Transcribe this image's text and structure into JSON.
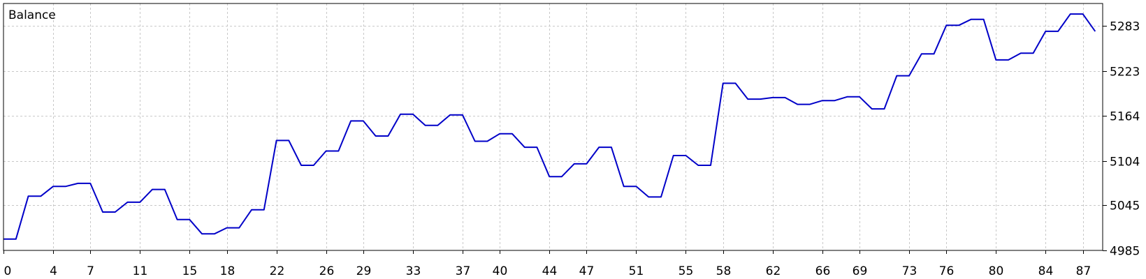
{
  "chart_data": {
    "type": "line",
    "title": "Balance",
    "xlabel": "",
    "ylabel": "",
    "xlim": [
      0,
      88.6
    ],
    "ylim": [
      4985,
      5313
    ],
    "x_ticks": [
      0,
      4,
      7,
      11,
      15,
      18,
      22,
      26,
      29,
      33,
      37,
      40,
      44,
      47,
      51,
      55,
      58,
      62,
      66,
      69,
      73,
      76,
      80,
      84,
      87
    ],
    "y_ticks": [
      4985,
      5045,
      5104,
      5164,
      5223,
      5283
    ],
    "grid": true,
    "legend": "none",
    "series": [
      {
        "color": "#0000c8",
        "points": [
          [
            0,
            5000
          ],
          [
            1,
            5000
          ],
          [
            2,
            5057
          ],
          [
            3,
            5057
          ],
          [
            4,
            5070
          ],
          [
            5,
            5070
          ],
          [
            6,
            5074
          ],
          [
            7,
            5074
          ],
          [
            8,
            5036
          ],
          [
            9,
            5036
          ],
          [
            10,
            5049
          ],
          [
            11,
            5049
          ],
          [
            12,
            5066
          ],
          [
            13,
            5066
          ],
          [
            14,
            5026
          ],
          [
            15,
            5026
          ],
          [
            16,
            5007
          ],
          [
            17,
            5007
          ],
          [
            18,
            5015
          ],
          [
            19,
            5015
          ],
          [
            20,
            5039
          ],
          [
            21,
            5039
          ],
          [
            22,
            5131
          ],
          [
            23,
            5131
          ],
          [
            24,
            5098
          ],
          [
            25,
            5098
          ],
          [
            26,
            5117
          ],
          [
            27,
            5117
          ],
          [
            28,
            5157
          ],
          [
            29,
            5157
          ],
          [
            30,
            5137
          ],
          [
            31,
            5137
          ],
          [
            32,
            5166
          ],
          [
            33,
            5166
          ],
          [
            34,
            5151
          ],
          [
            35,
            5151
          ],
          [
            36,
            5165
          ],
          [
            37,
            5165
          ],
          [
            38,
            5130
          ],
          [
            39,
            5130
          ],
          [
            40,
            5140
          ],
          [
            41,
            5140
          ],
          [
            42,
            5122
          ],
          [
            43,
            5122
          ],
          [
            44,
            5083
          ],
          [
            45,
            5083
          ],
          [
            46,
            5100
          ],
          [
            47,
            5100
          ],
          [
            48,
            5122
          ],
          [
            49,
            5122
          ],
          [
            50,
            5070
          ],
          [
            51,
            5070
          ],
          [
            52,
            5056
          ],
          [
            53,
            5056
          ],
          [
            54,
            5111
          ],
          [
            55,
            5111
          ],
          [
            56,
            5098
          ],
          [
            57,
            5098
          ],
          [
            58,
            5207
          ],
          [
            59,
            5207
          ],
          [
            60,
            5186
          ],
          [
            61,
            5186
          ],
          [
            62,
            5188
          ],
          [
            63,
            5188
          ],
          [
            64,
            5179
          ],
          [
            65,
            5179
          ],
          [
            66,
            5184
          ],
          [
            67,
            5184
          ],
          [
            68,
            5189
          ],
          [
            69,
            5189
          ],
          [
            70,
            5173
          ],
          [
            71,
            5173
          ],
          [
            72,
            5217
          ],
          [
            73,
            5217
          ],
          [
            74,
            5246
          ],
          [
            75,
            5246
          ],
          [
            76,
            5284
          ],
          [
            77,
            5284
          ],
          [
            78,
            5292
          ],
          [
            79,
            5292
          ],
          [
            80,
            5238
          ],
          [
            81,
            5238
          ],
          [
            82,
            5247
          ],
          [
            83,
            5247
          ],
          [
            84,
            5276
          ],
          [
            85,
            5276
          ],
          [
            86,
            5299
          ],
          [
            87,
            5299
          ],
          [
            88,
            5276
          ]
        ]
      }
    ]
  }
}
